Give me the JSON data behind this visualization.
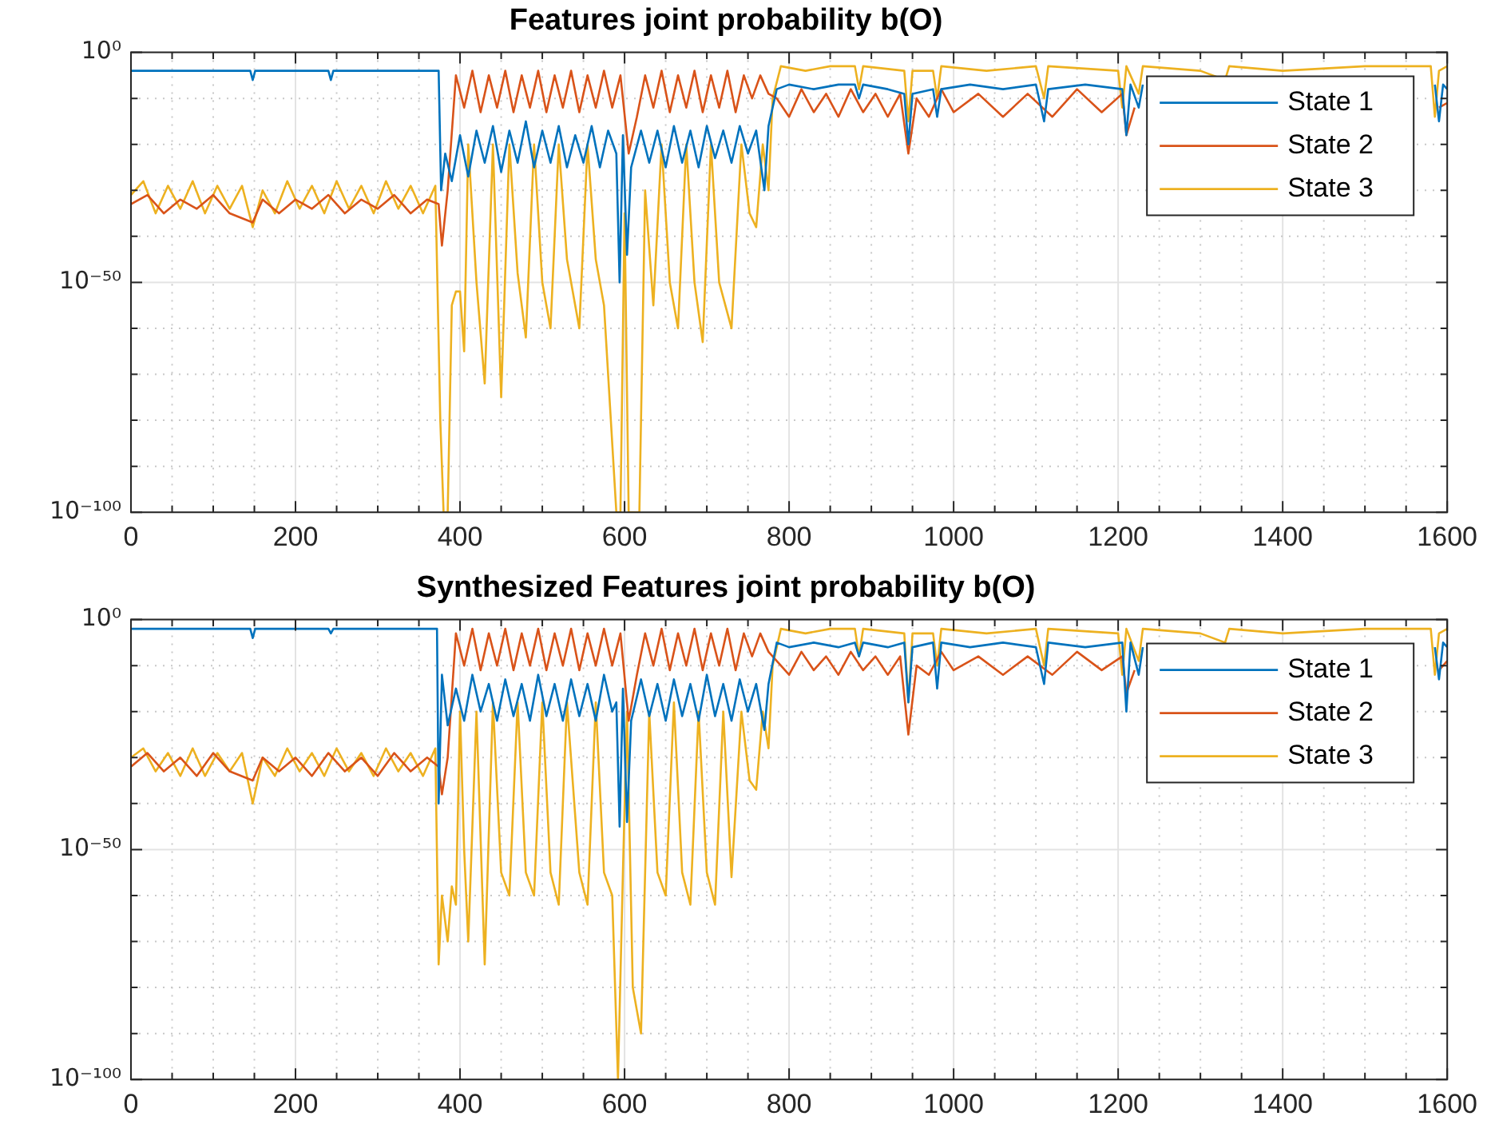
{
  "chart_data": [
    {
      "type": "line",
      "title": "Features joint probability b(O)",
      "log": "y",
      "grid": true,
      "legend": "top right",
      "xlim": [
        0,
        1600
      ],
      "ylim": [
        1e-100,
        1
      ],
      "xticks": [
        0,
        {
          "value": 50,
          "label": null
        },
        200,
        {
          "value": 100,
          "label": null
        },
        {
          "value": 150,
          "label": null
        },
        {
          "value": 250,
          "label": null
        },
        {
          "value": 300,
          "label": null
        },
        {
          "value": 350,
          "label": null
        },
        400,
        {
          "value": 450,
          "label": null
        },
        {
          "value": 500,
          "label": null
        },
        {
          "value": 550,
          "label": null
        },
        600,
        {
          "value": 650,
          "label": null
        },
        {
          "value": 700,
          "label": null
        },
        {
          "value": 750,
          "label": null
        },
        800,
        {
          "value": 850,
          "label": null
        },
        {
          "value": 900,
          "label": null
        },
        {
          "value": 950,
          "label": null
        },
        1000,
        {
          "value": 1050,
          "label": null
        },
        {
          "value": 1100,
          "label": null
        },
        {
          "value": 1150,
          "label": null
        },
        1200,
        {
          "value": 1250,
          "label": null
        },
        {
          "value": 1300,
          "label": null
        },
        {
          "value": 1350,
          "label": null
        },
        1400,
        {
          "value": 1450,
          "label": null
        },
        {
          "value": 1500,
          "label": null
        },
        {
          "value": 1550,
          "label": null
        },
        1600
      ],
      "yticks": [
        {
          "value": 1e-100,
          "label": "10⁻¹⁰⁰"
        },
        {
          "value": 1e-90,
          "label": null
        },
        {
          "value": 1e-80,
          "label": null
        },
        {
          "value": 1e-70,
          "label": null
        },
        {
          "value": 1e-60,
          "label": null
        },
        {
          "value": 1e-50,
          "label": "10⁻⁵⁰"
        },
        {
          "value": 1e-40,
          "label": null
        },
        {
          "value": 1e-30,
          "label": null
        },
        {
          "value": 1e-20,
          "label": null
        },
        {
          "value": 1e-10,
          "label": null
        },
        {
          "value": 1,
          "label": "10⁰"
        }
      ],
      "series": [
        {
          "name": "State 1",
          "color": "#0072bd",
          "x": [
            0,
            145,
            148,
            151,
            240,
            243,
            246,
            374,
            377,
            382,
            390,
            400,
            410,
            420,
            430,
            440,
            450,
            460,
            470,
            480,
            490,
            500,
            510,
            520,
            530,
            540,
            550,
            560,
            570,
            580,
            590,
            594,
            598,
            603,
            608,
            620,
            630,
            640,
            650,
            660,
            670,
            680,
            690,
            700,
            710,
            720,
            730,
            740,
            750,
            760,
            770,
            775,
            785,
            800,
            830,
            860,
            880,
            885,
            890,
            920,
            940,
            945,
            950,
            975,
            980,
            985,
            1020,
            1060,
            1100,
            1110,
            1115,
            1160,
            1205,
            1210,
            1215,
            1225,
            1230,
            1240,
            1580,
            1585,
            1590,
            1595,
            1600
          ],
          "values": [
            0.0001,
            0.0001,
            1e-06,
            0.0001,
            0.0001,
            1e-06,
            0.0001,
            0.0001,
            1e-30,
            1e-22,
            1e-28,
            1e-18,
            1e-27,
            1e-17,
            1e-24,
            1e-16,
            1e-26,
            1e-17,
            1e-24,
            1e-15,
            1e-25,
            1e-17,
            1e-24,
            1e-16,
            1e-25,
            1e-18,
            1e-24,
            1e-16,
            1e-25,
            1e-17,
            1e-22,
            1e-50,
            1e-18,
            1e-44,
            1e-25,
            1e-17,
            1e-24,
            1e-17,
            1e-25,
            1e-16,
            1e-24,
            1e-17,
            1e-25,
            1e-16,
            1e-23,
            1e-17,
            1e-24,
            1e-16,
            1e-22,
            1e-17,
            1e-30,
            1e-16,
            1e-08,
            1e-07,
            1e-08,
            1e-07,
            1e-07,
            1e-10,
            1e-07,
            1e-08,
            1e-09,
            1e-20,
            1e-09,
            1e-08,
            1e-14,
            1e-08,
            1e-07,
            1e-08,
            1e-07,
            1e-15,
            1e-08,
            1e-07,
            1e-08,
            1e-18,
            1e-07,
            1e-12,
            1e-07,
            null,
            null,
            1e-07,
            1e-15,
            1e-07,
            1e-08
          ]
        },
        {
          "name": "State 2",
          "color": "#d95319",
          "x": [
            0,
            20,
            40,
            60,
            80,
            100,
            120,
            148,
            160,
            180,
            200,
            220,
            240,
            260,
            280,
            300,
            320,
            340,
            360,
            374,
            378,
            385,
            395,
            405,
            415,
            425,
            435,
            445,
            455,
            465,
            475,
            485,
            495,
            505,
            515,
            525,
            535,
            545,
            555,
            565,
            575,
            585,
            595,
            605,
            615,
            625,
            635,
            645,
            655,
            665,
            675,
            685,
            695,
            705,
            715,
            725,
            735,
            745,
            755,
            765,
            775,
            785,
            800,
            815,
            830,
            845,
            860,
            875,
            890,
            905,
            920,
            935,
            945,
            955,
            970,
            985,
            1000,
            1030,
            1060,
            1090,
            1120,
            1150,
            1180,
            1205,
            1210,
            1220,
            1235,
            1580,
            1590,
            1600
          ],
          "values": [
            1e-33,
            1e-31,
            1e-35,
            1e-32,
            1e-34,
            1e-31,
            1e-35,
            1e-37,
            1e-32,
            1e-35,
            1e-32,
            1e-34,
            1e-31,
            1e-35,
            1e-32,
            1e-34,
            1e-31,
            1e-35,
            1e-32,
            1e-33,
            1e-42,
            1e-30,
            1e-05,
            1e-12,
            0.0001,
            1e-13,
            1e-05,
            1e-12,
            0.0001,
            1e-13,
            1e-05,
            1e-12,
            0.0001,
            1e-13,
            1e-05,
            1e-12,
            0.0001,
            1e-13,
            1e-05,
            1e-12,
            0.0001,
            1e-12,
            1e-05,
            1e-22,
            1e-14,
            1e-05,
            1e-12,
            0.0001,
            1e-13,
            1e-05,
            1e-12,
            0.0001,
            1e-13,
            1e-05,
            1e-12,
            0.0001,
            1e-13,
            1e-05,
            1e-10,
            1e-05,
            1e-09,
            1e-10,
            1e-14,
            1e-08,
            1e-13,
            1e-09,
            1e-14,
            1e-08,
            1e-13,
            1e-09,
            1e-14,
            1e-09,
            1e-22,
            1e-10,
            1e-14,
            1e-08,
            1e-13,
            1e-09,
            1e-14,
            1e-09,
            1e-14,
            1e-08,
            1e-13,
            1e-09,
            1e-18,
            1e-12,
            null,
            null,
            1e-12,
            1e-11
          ]
        },
        {
          "name": "State 3",
          "color": "#edb120",
          "x": [
            0,
            15,
            30,
            45,
            60,
            75,
            90,
            105,
            120,
            135,
            148,
            160,
            175,
            190,
            205,
            220,
            235,
            250,
            265,
            280,
            295,
            310,
            325,
            340,
            355,
            370,
            376,
            380,
            385,
            390,
            395,
            400,
            405,
            410,
            420,
            430,
            440,
            450,
            460,
            470,
            480,
            490,
            500,
            510,
            520,
            530,
            545,
            555,
            565,
            575,
            590,
            595,
            600,
            605,
            618,
            625,
            635,
            645,
            655,
            665,
            675,
            685,
            695,
            705,
            715,
            730,
            742,
            752,
            760,
            768,
            775,
            780,
            790,
            820,
            850,
            880,
            885,
            890,
            940,
            945,
            950,
            975,
            980,
            985,
            1040,
            1100,
            1110,
            1115,
            1200,
            1205,
            1210,
            1225,
            1230,
            1300,
            1330,
            1335,
            1400,
            1500,
            1580,
            1585,
            1590,
            1600
          ],
          "values": [
            1e-31,
            1e-28,
            1e-35,
            1e-29,
            1e-34,
            1e-28,
            1e-35,
            1e-29,
            1e-34,
            1e-29,
            1e-38,
            1e-30,
            1e-35,
            1e-28,
            1e-34,
            1e-29,
            1e-35,
            1e-28,
            1e-34,
            1e-29,
            1e-35,
            1e-28,
            1e-34,
            1e-29,
            1e-35,
            1e-29,
            1e-80,
            1e-100,
            1e-100,
            1e-55,
            1e-52,
            1e-52,
            1e-65,
            1e-20,
            1e-50,
            1e-72,
            1e-20,
            1e-75,
            1e-20,
            1e-48,
            1e-62,
            1e-20,
            1e-50,
            1e-60,
            1e-20,
            1e-45,
            1e-60,
            1e-20,
            1e-45,
            1e-55,
            1e-100,
            1e-100,
            1e-35,
            1e-100,
            1e-100,
            1e-30,
            1e-55,
            1e-20,
            1e-50,
            1e-60,
            1e-20,
            1e-50,
            1e-63,
            1e-20,
            1e-50,
            1e-60,
            1e-20,
            1e-35,
            1e-38,
            1e-20,
            1e-30,
            1e-10,
            0.001,
            0.0001,
            0.001,
            0.001,
            1e-08,
            0.001,
            0.0001,
            1e-15,
            0.0001,
            0.0001,
            1e-10,
            0.001,
            0.0001,
            0.001,
            1e-10,
            0.001,
            0.0001,
            1e-12,
            0.001,
            1e-09,
            0.001,
            0.0001,
            1e-06,
            0.001,
            0.0001,
            0.001,
            0.001,
            1e-14,
            0.0001,
            0.001
          ]
        }
      ]
    },
    {
      "type": "line",
      "title": "Synthesized Features joint probability b(O)",
      "log": "y",
      "grid": true,
      "legend": "top right",
      "xlim": [
        0,
        1600
      ],
      "ylim": [
        1e-100,
        1
      ],
      "xticks": [
        0,
        {
          "value": 50,
          "label": null
        },
        200,
        {
          "value": 100,
          "label": null
        },
        {
          "value": 150,
          "label": null
        },
        {
          "value": 250,
          "label": null
        },
        {
          "value": 300,
          "label": null
        },
        {
          "value": 350,
          "label": null
        },
        400,
        {
          "value": 450,
          "label": null
        },
        {
          "value": 500,
          "label": null
        },
        {
          "value": 550,
          "label": null
        },
        600,
        {
          "value": 650,
          "label": null
        },
        {
          "value": 700,
          "label": null
        },
        {
          "value": 750,
          "label": null
        },
        800,
        {
          "value": 850,
          "label": null
        },
        {
          "value": 900,
          "label": null
        },
        {
          "value": 950,
          "label": null
        },
        1000,
        {
          "value": 1050,
          "label": null
        },
        {
          "value": 1100,
          "label": null
        },
        {
          "value": 1150,
          "label": null
        },
        1200,
        {
          "value": 1250,
          "label": null
        },
        {
          "value": 1300,
          "label": null
        },
        {
          "value": 1350,
          "label": null
        },
        1400,
        {
          "value": 1450,
          "label": null
        },
        {
          "value": 1500,
          "label": null
        },
        {
          "value": 1550,
          "label": null
        },
        1600
      ],
      "yticks": [
        {
          "value": 1e-100,
          "label": "10⁻¹⁰⁰"
        },
        {
          "value": 1e-90,
          "label": null
        },
        {
          "value": 1e-80,
          "label": null
        },
        {
          "value": 1e-70,
          "label": null
        },
        {
          "value": 1e-60,
          "label": null
        },
        {
          "value": 1e-50,
          "label": "10⁻⁵⁰"
        },
        {
          "value": 1e-40,
          "label": null
        },
        {
          "value": 1e-30,
          "label": null
        },
        {
          "value": 1e-20,
          "label": null
        },
        {
          "value": 1e-10,
          "label": null
        },
        {
          "value": 1,
          "label": "10⁰"
        }
      ],
      "series": [
        {
          "name": "State 1",
          "color": "#0072bd",
          "x": [
            0,
            145,
            148,
            151,
            240,
            243,
            246,
            372,
            374,
            378,
            385,
            395,
            405,
            415,
            425,
            435,
            445,
            455,
            465,
            475,
            485,
            495,
            505,
            515,
            525,
            535,
            545,
            555,
            565,
            575,
            585,
            590,
            594,
            598,
            603,
            608,
            620,
            630,
            640,
            650,
            660,
            670,
            680,
            690,
            700,
            710,
            720,
            730,
            740,
            750,
            760,
            770,
            775,
            785,
            800,
            830,
            860,
            880,
            885,
            890,
            920,
            940,
            945,
            950,
            975,
            980,
            985,
            1020,
            1060,
            1100,
            1110,
            1115,
            1160,
            1205,
            1210,
            1215,
            1225,
            1230,
            1240,
            1580,
            1585,
            1590,
            1595,
            1600
          ],
          "values": [
            0.01,
            0.01,
            0.0001,
            0.01,
            0.01,
            0.001,
            0.01,
            0.01,
            1e-40,
            1e-12,
            1e-23,
            1e-15,
            1e-22,
            1e-12,
            1e-20,
            1e-14,
            1e-22,
            1e-13,
            1e-21,
            1e-14,
            1e-22,
            1e-12,
            1e-21,
            1e-14,
            1e-22,
            1e-13,
            1e-21,
            1e-14,
            1e-22,
            1e-12,
            1e-20,
            1e-18,
            1e-45,
            1e-15,
            1e-44,
            1e-22,
            1e-13,
            1e-21,
            1e-14,
            1e-22,
            1e-13,
            1e-21,
            1e-14,
            1e-22,
            1e-12,
            1e-21,
            1e-14,
            1e-22,
            1e-13,
            1e-20,
            1e-14,
            1e-24,
            1e-14,
            1e-05,
            1e-06,
            1e-05,
            1e-06,
            1e-05,
            1e-08,
            1e-05,
            1e-06,
            1e-05,
            1e-18,
            1e-06,
            1e-05,
            1e-15,
            1e-05,
            1e-06,
            1e-05,
            1e-06,
            1e-14,
            1e-05,
            1e-06,
            1e-05,
            1e-20,
            1e-05,
            1e-12,
            1e-06,
            null,
            null,
            1e-06,
            1e-13,
            1e-05,
            1e-06
          ]
        },
        {
          "name": "State 2",
          "color": "#d95319",
          "x": [
            0,
            20,
            40,
            60,
            80,
            100,
            120,
            148,
            160,
            180,
            200,
            220,
            240,
            260,
            280,
            300,
            320,
            340,
            360,
            374,
            378,
            385,
            395,
            405,
            415,
            425,
            435,
            445,
            455,
            465,
            475,
            485,
            495,
            505,
            515,
            525,
            535,
            545,
            555,
            565,
            575,
            585,
            595,
            605,
            615,
            625,
            635,
            645,
            655,
            665,
            675,
            685,
            695,
            705,
            715,
            725,
            735,
            745,
            755,
            765,
            775,
            785,
            800,
            815,
            830,
            845,
            860,
            875,
            890,
            905,
            920,
            935,
            945,
            955,
            970,
            985,
            1000,
            1030,
            1060,
            1090,
            1120,
            1150,
            1180,
            1205,
            1210,
            1220,
            1235,
            1580,
            1590,
            1600
          ],
          "values": [
            1e-32,
            1e-29,
            1e-33,
            1e-30,
            1e-34,
            1e-29,
            1e-33,
            1e-35,
            1e-30,
            1e-33,
            1e-30,
            1e-34,
            1e-29,
            1e-33,
            1e-30,
            1e-34,
            1e-29,
            1e-33,
            1e-30,
            1e-32,
            1e-38,
            1e-30,
            0.001,
            1e-10,
            0.01,
            1e-11,
            0.001,
            1e-10,
            0.01,
            1e-11,
            0.001,
            1e-10,
            0.01,
            1e-11,
            0.001,
            1e-10,
            0.01,
            1e-11,
            0.001,
            1e-10,
            0.01,
            1e-10,
            0.001,
            1e-22,
            1e-12,
            0.001,
            1e-10,
            0.01,
            1e-11,
            0.001,
            1e-10,
            0.01,
            1e-11,
            0.001,
            1e-10,
            0.01,
            1e-11,
            0.001,
            1e-08,
            0.001,
            1e-07,
            1e-09,
            1e-12,
            1e-07,
            1e-11,
            1e-08,
            1e-12,
            1e-07,
            1e-11,
            1e-08,
            1e-12,
            1e-08,
            1e-25,
            1e-10,
            1e-12,
            1e-07,
            1e-11,
            1e-08,
            1e-12,
            1e-08,
            1e-12,
            1e-07,
            1e-11,
            1e-08,
            1e-16,
            1e-11,
            null,
            null,
            1e-11,
            1e-09
          ]
        },
        {
          "name": "State 3",
          "color": "#edb120",
          "x": [
            0,
            15,
            30,
            45,
            60,
            75,
            90,
            105,
            120,
            135,
            148,
            160,
            175,
            190,
            205,
            220,
            235,
            250,
            265,
            280,
            295,
            310,
            325,
            340,
            355,
            370,
            374,
            378,
            385,
            390,
            395,
            400,
            405,
            410,
            420,
            430,
            440,
            450,
            460,
            470,
            480,
            490,
            500,
            510,
            520,
            530,
            545,
            555,
            565,
            575,
            585,
            592,
            598,
            603,
            610,
            615,
            620,
            630,
            640,
            650,
            660,
            670,
            680,
            690,
            700,
            710,
            720,
            730,
            742,
            752,
            760,
            768,
            775,
            780,
            790,
            820,
            850,
            880,
            885,
            890,
            940,
            945,
            950,
            975,
            980,
            985,
            1040,
            1100,
            1110,
            1115,
            1200,
            1205,
            1210,
            1225,
            1230,
            1300,
            1330,
            1335,
            1400,
            1500,
            1580,
            1585,
            1590,
            1600
          ],
          "values": [
            1e-30,
            1e-28,
            1e-33,
            1e-29,
            1e-34,
            1e-28,
            1e-34,
            1e-29,
            1e-33,
            1e-29,
            1e-40,
            1e-30,
            1e-34,
            1e-28,
            1e-33,
            1e-29,
            1e-34,
            1e-28,
            1e-33,
            1e-29,
            1e-34,
            1e-28,
            1e-33,
            1e-29,
            1e-34,
            1e-28,
            1e-75,
            1e-60,
            1e-70,
            1e-58,
            1e-62,
            1e-20,
            1e-50,
            1e-70,
            1e-20,
            1e-75,
            1e-18,
            1e-55,
            1e-60,
            1e-18,
            1e-55,
            1e-60,
            1e-18,
            1e-55,
            1e-62,
            1e-18,
            1e-55,
            1e-62,
            1e-18,
            1e-55,
            1e-60,
            1e-100,
            1e-55,
            1e-20,
            1e-80,
            1e-85,
            1e-90,
            1e-20,
            1e-55,
            1e-60,
            1e-18,
            1e-55,
            1e-62,
            1e-20,
            1e-55,
            1e-62,
            1e-20,
            1e-56,
            1e-20,
            1e-35,
            1e-37,
            1e-20,
            1e-28,
            1e-10,
            0.01,
            0.001,
            0.01,
            0.01,
            1e-08,
            0.01,
            0.001,
            1e-18,
            0.001,
            0.001,
            1e-10,
            0.01,
            0.001,
            0.01,
            1e-10,
            0.01,
            0.001,
            1e-12,
            0.01,
            1e-09,
            0.01,
            0.001,
            1e-05,
            0.01,
            0.001,
            0.01,
            0.01,
            1e-12,
            0.001,
            0.01
          ]
        }
      ]
    }
  ]
}
